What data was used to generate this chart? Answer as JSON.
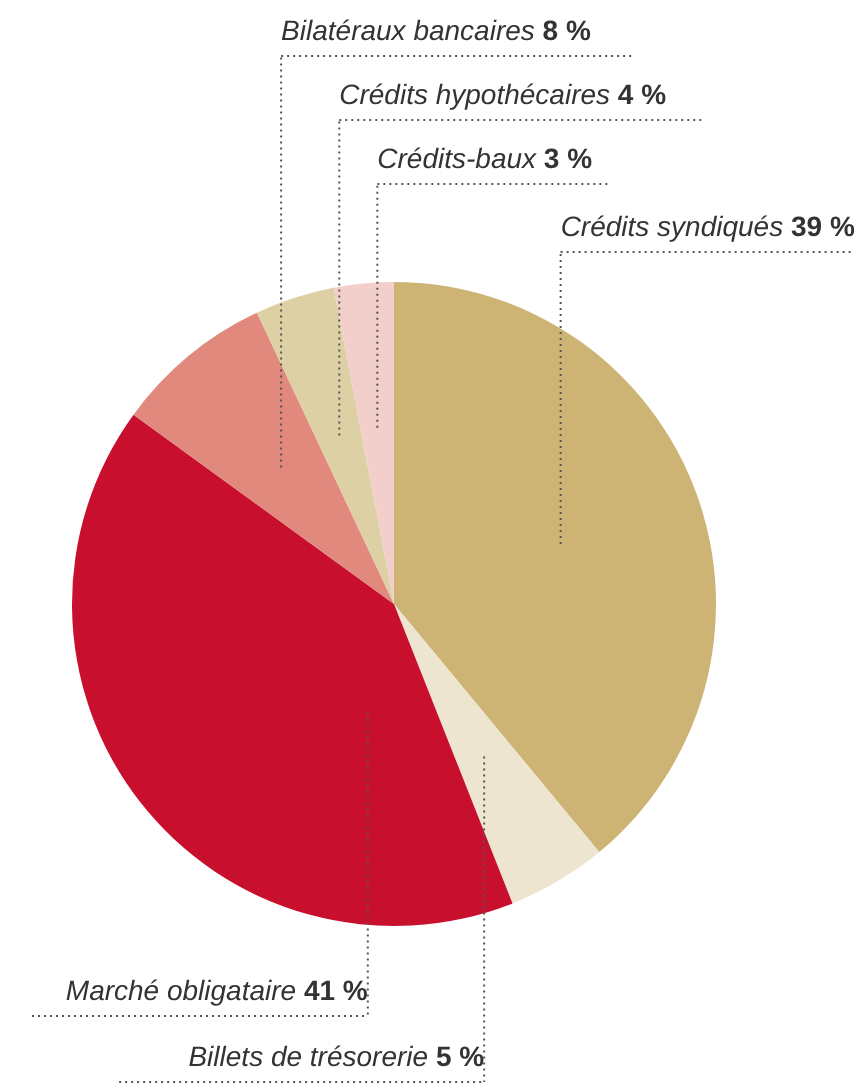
{
  "chart_data": {
    "type": "pie",
    "categories": [
      "Crédits syndiqués",
      "Billets de trésorerie",
      "Marché obligataire",
      "Bilatéraux bancaires",
      "Crédits hypothécaires",
      "Crédits-baux"
    ],
    "values": [
      39,
      5,
      41,
      8,
      4,
      3
    ],
    "value_labels": [
      "39 %",
      "5 %",
      "41 %",
      "8 %",
      "4 %",
      "3 %"
    ],
    "colors": [
      "#cdb474",
      "#ede5cf",
      "#c8102e",
      "#e0897c",
      "#ddd0a5",
      "#f2cfcb"
    ]
  }
}
